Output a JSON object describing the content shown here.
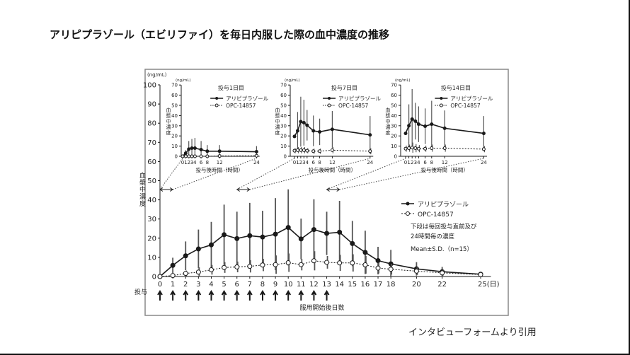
{
  "title": "アリピプラゾール（エビリファイ）を毎日内服した際の血中濃度の推移",
  "source": "インタビューフォームより引用",
  "colors": {
    "line": "#1a1a1a",
    "error_bar": "#555555",
    "frame": "#888888"
  },
  "chart_data": [
    {
      "type": "line",
      "role": "main",
      "unit": "(ng/mL)",
      "ylabel": "血漿中濃度",
      "xlabel": "服用開始後日数",
      "x_unit_suffix": "(日)",
      "ylim": [
        0,
        100
      ],
      "yticks": [
        0,
        10,
        20,
        30,
        40,
        50,
        60,
        70,
        80,
        90,
        100
      ],
      "x": [
        0,
        1,
        2,
        3,
        4,
        5,
        6,
        7,
        8,
        9,
        10,
        11,
        12,
        13,
        14,
        15,
        16,
        17,
        18,
        20,
        22,
        25
      ],
      "dosing_label": "投与",
      "dosing_days": [
        0,
        1,
        2,
        3,
        4,
        5,
        6,
        7,
        8,
        9,
        10,
        11,
        12,
        13
      ],
      "series": [
        {
          "name": "アリピプラゾール",
          "marker": "filled-circle",
          "style": "solid",
          "values": [
            0,
            5.8,
            10.8,
            14.4,
            16.5,
            21.8,
            19.8,
            21.3,
            20.6,
            22.1,
            25.6,
            19.6,
            24.5,
            22.5,
            23.1,
            17.2,
            12.6,
            8.3,
            6.6,
            4.0,
            2.5,
            1.2
          ],
          "sd": [
            0,
            4.0,
            7.5,
            10.1,
            12.0,
            15.7,
            14.0,
            17.1,
            13.7,
            18.8,
            19.9,
            10.6,
            15.8,
            11.3,
            16.4,
            11.8,
            11.3,
            7.2,
            7.3,
            3.5,
            2.5,
            0.8
          ]
        },
        {
          "name": "OPC-14857",
          "marker": "open-circle",
          "style": "dotted",
          "values": [
            0,
            0.5,
            1.6,
            2.3,
            3.5,
            4.7,
            5.0,
            5.3,
            6.0,
            6.2,
            7.2,
            6.2,
            8.2,
            7.4,
            7.1,
            7.1,
            6.1,
            4.4,
            3.8,
            2.8,
            1.9,
            1.0
          ],
          "sd": [
            0,
            0.4,
            1.5,
            2.5,
            2.5,
            2.8,
            2.8,
            3.2,
            3.2,
            4.8,
            4.8,
            3.0,
            5.0,
            3.3,
            4.2,
            4.5,
            4.6,
            2.8,
            2.8,
            2.0,
            1.5,
            0.6
          ]
        }
      ],
      "notes": [
        "下段は毎回投与直前及び",
        "24時間毎の濃度",
        "Mean±S.D.（n=15）"
      ],
      "legend": "right"
    },
    {
      "type": "line",
      "role": "inset",
      "title": "投与1日目",
      "unit": "(ng/mL)",
      "ylabel": "血漿中濃度",
      "xlabel": "投与後時間（時間）",
      "ylim": [
        0,
        70
      ],
      "yticks": [
        0,
        10,
        20,
        30,
        40,
        50,
        60,
        70
      ],
      "x": [
        0,
        1,
        2,
        3,
        4,
        6,
        8,
        12,
        24
      ],
      "xtick_labels": [
        "0",
        "1",
        "2",
        "3",
        "4",
        "6",
        "8",
        "12",
        "24"
      ],
      "series": [
        {
          "name": "アリピプラゾール",
          "values": [
            0,
            3,
            7,
            8,
            8,
            6.5,
            5,
            5,
            4.5
          ],
          "sd": [
            0,
            3,
            8,
            9,
            10,
            8.5,
            6,
            6,
            5.5
          ]
        },
        {
          "name": "OPC-14857",
          "values": [
            0,
            0,
            0,
            0,
            0,
            0,
            0,
            0.3,
            0.5
          ],
          "sd": [
            0,
            0,
            0,
            0,
            0,
            0,
            0,
            0.5,
            0.8
          ]
        }
      ]
    },
    {
      "type": "line",
      "role": "inset",
      "title": "投与7日目",
      "unit": "(ng/mL)",
      "ylabel": "血漿中濃度",
      "xlabel": "投与後時間（時間）",
      "ylim": [
        0,
        70
      ],
      "yticks": [
        0,
        10,
        20,
        30,
        40,
        50,
        60,
        70
      ],
      "x": [
        0,
        1,
        2,
        3,
        4,
        6,
        8,
        12,
        24
      ],
      "xtick_labels": [
        "0",
        "1",
        "2",
        "3",
        "4",
        "6",
        "8",
        "12",
        "24"
      ],
      "series": [
        {
          "name": "アリピプラゾール",
          "values": [
            19.5,
            25,
            34,
            33,
            30.5,
            25,
            24,
            26.5,
            21
          ],
          "sd": [
            0,
            18.5,
            24.5,
            22.5,
            15,
            15,
            13,
            18,
            18.5
          ]
        },
        {
          "name": "OPC-14857",
          "values": [
            5.5,
            6,
            6,
            6,
            5.5,
            5,
            5,
            6,
            5
          ],
          "sd": [
            2.5,
            3,
            3,
            3,
            2.5,
            2.5,
            2.5,
            3,
            3
          ]
        }
      ]
    },
    {
      "type": "line",
      "role": "inset",
      "title": "投与14日目",
      "unit": "(ng/mL)",
      "ylabel": "血漿中濃度",
      "xlabel": "投与後時間（時間）",
      "ylim": [
        0,
        70
      ],
      "yticks": [
        0,
        10,
        20,
        30,
        40,
        50,
        60,
        70
      ],
      "x": [
        0,
        1,
        2,
        3,
        4,
        6,
        8,
        12,
        24
      ],
      "xtick_labels": [
        "0",
        "1",
        "2",
        "3",
        "4",
        "6",
        "8",
        "12",
        "24"
      ],
      "series": [
        {
          "name": "アリピプラゾール",
          "values": [
            22.5,
            30,
            36.5,
            34.5,
            31.5,
            29.5,
            31.5,
            27.5,
            22.5
          ],
          "sd": [
            0,
            21,
            29.5,
            18,
            17.5,
            17.5,
            23,
            17.5,
            17
          ]
        },
        {
          "name": "OPC-14857",
          "values": [
            7.5,
            8,
            8.5,
            8,
            7.5,
            7.5,
            8,
            8,
            7
          ],
          "sd": [
            3,
            3.5,
            5,
            4,
            3.5,
            3,
            3.5,
            3.5,
            3
          ]
        }
      ]
    }
  ]
}
